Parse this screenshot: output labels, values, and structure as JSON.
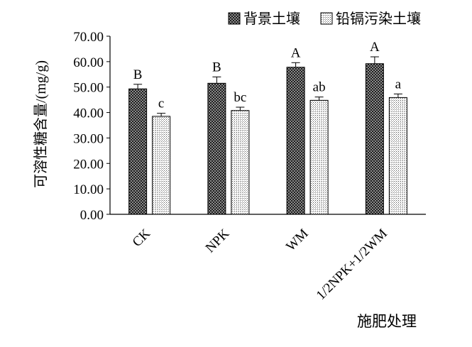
{
  "chart_data": {
    "type": "bar",
    "title": "",
    "xlabel": "施肥处理",
    "ylabel": "可溶性糖含量/(mg/g)",
    "ylim": [
      0,
      70
    ],
    "ytick_step": 10,
    "ytick_labels": [
      "0.00",
      "10.00",
      "20.00",
      "30.00",
      "40.00",
      "50.00",
      "60.00",
      "70.00"
    ],
    "categories": [
      "CK",
      "NPK",
      "WM",
      "1/2NPK+1/2WM"
    ],
    "legend_position": "top-right",
    "grid": false,
    "series": [
      {
        "name": "背景土壤",
        "values": [
          49.3,
          51.5,
          57.8,
          59.2
        ],
        "errors": [
          1.8,
          2.5,
          1.8,
          2.7
        ],
        "labels": [
          "B",
          "B",
          "A",
          "A"
        ],
        "color": "#4a4a4a"
      },
      {
        "name": "铅镉污染土壤",
        "values": [
          38.5,
          40.8,
          44.8,
          45.9
        ],
        "errors": [
          1.2,
          1.3,
          1.3,
          1.4
        ],
        "labels": [
          "c",
          "bc",
          "ab",
          "a"
        ],
        "color": "#d8d8d8"
      }
    ]
  }
}
